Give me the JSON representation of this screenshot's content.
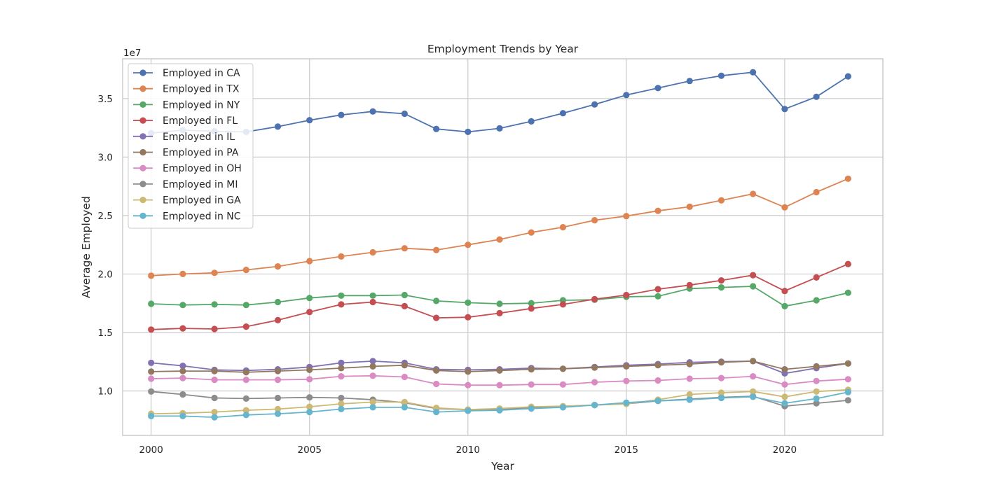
{
  "chart_data": {
    "type": "line",
    "title": "Employment Trends by Year",
    "xlabel": "Year",
    "ylabel": "Average Employed",
    "y_offset_label": "1e7",
    "xlim": [
      1999.1,
      2023.1
    ],
    "ylim": [
      6200000,
      38400000
    ],
    "x_ticks": [
      2000,
      2005,
      2010,
      2015,
      2020
    ],
    "y_ticks": [
      10000000,
      15000000,
      20000000,
      25000000,
      30000000,
      35000000
    ],
    "y_tick_labels": [
      "1.0",
      "1.5",
      "2.0",
      "2.5",
      "3.0",
      "3.5"
    ],
    "grid": true,
    "legend_position": "upper left",
    "x": [
      2000,
      2001,
      2002,
      2003,
      2004,
      2005,
      2006,
      2007,
      2008,
      2009,
      2010,
      2011,
      2012,
      2013,
      2014,
      2015,
      2016,
      2017,
      2018,
      2019,
      2020,
      2021,
      2022
    ],
    "series": [
      {
        "name": "Employed in CA",
        "color": "#4c72b0",
        "values": [
          32050000,
          32300000,
          32200000,
          32150000,
          32600000,
          33150000,
          33600000,
          33900000,
          33700000,
          32400000,
          32150000,
          32450000,
          33050000,
          33750000,
          34500000,
          35300000,
          35900000,
          36500000,
          36950000,
          37250000,
          34100000,
          35150000,
          36900000
        ]
      },
      {
        "name": "Employed in TX",
        "color": "#dd8452",
        "values": [
          19850000,
          20000000,
          20100000,
          20350000,
          20650000,
          21100000,
          21500000,
          21850000,
          22200000,
          22050000,
          22500000,
          22950000,
          23550000,
          24000000,
          24600000,
          24950000,
          25400000,
          25750000,
          26300000,
          26850000,
          25700000,
          27000000,
          28150000
        ]
      },
      {
        "name": "Employed in NY",
        "color": "#55a868",
        "values": [
          17450000,
          17350000,
          17400000,
          17350000,
          17600000,
          17950000,
          18150000,
          18150000,
          18200000,
          17700000,
          17550000,
          17450000,
          17500000,
          17750000,
          17800000,
          18050000,
          18100000,
          18750000,
          18850000,
          18950000,
          17250000,
          17750000,
          18400000
        ]
      },
      {
        "name": "Employed in FL",
        "color": "#c44e52",
        "values": [
          15250000,
          15350000,
          15300000,
          15500000,
          16050000,
          16750000,
          17400000,
          17600000,
          17250000,
          16250000,
          16300000,
          16650000,
          17050000,
          17400000,
          17850000,
          18200000,
          18700000,
          19050000,
          19450000,
          19900000,
          18550000,
          19700000,
          20850000
        ]
      },
      {
        "name": "Employed in IL",
        "color": "#8172b3",
        "values": [
          12400000,
          12150000,
          11800000,
          11750000,
          11850000,
          12050000,
          12400000,
          12550000,
          12400000,
          11850000,
          11800000,
          11850000,
          11950000,
          11900000,
          12050000,
          12200000,
          12300000,
          12450000,
          12500000,
          12550000,
          11500000,
          11950000,
          12350000
        ]
      },
      {
        "name": "Employed in PA",
        "color": "#937860",
        "values": [
          11650000,
          11700000,
          11700000,
          11600000,
          11700000,
          11800000,
          11950000,
          12100000,
          12200000,
          11750000,
          11650000,
          11750000,
          11850000,
          11900000,
          12000000,
          12100000,
          12200000,
          12300000,
          12450000,
          12550000,
          11850000,
          12100000,
          12350000
        ]
      },
      {
        "name": "Employed in OH",
        "color": "#da8bc3",
        "values": [
          11050000,
          11100000,
          10950000,
          10950000,
          10950000,
          11000000,
          11250000,
          11300000,
          11200000,
          10600000,
          10500000,
          10500000,
          10550000,
          10550000,
          10750000,
          10850000,
          10900000,
          11050000,
          11100000,
          11250000,
          10550000,
          10850000,
          11000000
        ]
      },
      {
        "name": "Employed in MI",
        "color": "#8c8c8c",
        "values": [
          9950000,
          9700000,
          9400000,
          9350000,
          9400000,
          9450000,
          9400000,
          9250000,
          9000000,
          8500000,
          8400000,
          8400000,
          8550000,
          8650000,
          8800000,
          8900000,
          9150000,
          9300000,
          9450000,
          9550000,
          8700000,
          8950000,
          9200000
        ]
      },
      {
        "name": "Employed in GA",
        "color": "#ccb974",
        "values": [
          8050000,
          8100000,
          8200000,
          8350000,
          8450000,
          8650000,
          8900000,
          9050000,
          9050000,
          8550000,
          8400000,
          8500000,
          8650000,
          8700000,
          8800000,
          8900000,
          9250000,
          9700000,
          9850000,
          9950000,
          9500000,
          9950000,
          10100000
        ]
      },
      {
        "name": "Employed in NC",
        "color": "#64b5cd",
        "values": [
          7850000,
          7850000,
          7750000,
          7950000,
          8050000,
          8200000,
          8450000,
          8600000,
          8600000,
          8200000,
          8300000,
          8350000,
          8500000,
          8600000,
          8800000,
          9000000,
          9150000,
          9250000,
          9400000,
          9500000,
          8950000,
          9350000,
          9900000
        ]
      }
    ]
  }
}
